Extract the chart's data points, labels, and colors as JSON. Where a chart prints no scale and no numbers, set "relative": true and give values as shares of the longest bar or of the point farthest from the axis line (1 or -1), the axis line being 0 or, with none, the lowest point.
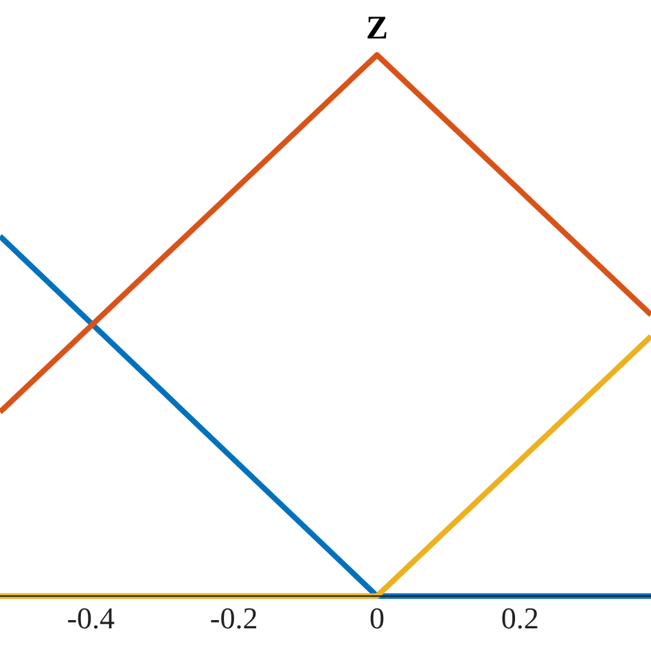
{
  "chart_data": {
    "type": "line",
    "relative": true,
    "xlim": [
      -0.527,
      0.383
    ],
    "xticks": [
      -0.4,
      -0.2,
      0,
      0.2
    ],
    "marker": "none",
    "line_style": "solid",
    "grid": false,
    "legend": false,
    "series": [
      {
        "color": "#0072bd",
        "x": [
          -0.527,
          0,
          0.383
        ],
        "values": [
          0.665,
          0,
          0
        ]
      },
      {
        "name": "Z",
        "color": "#d95319",
        "x": [
          -0.527,
          0,
          0.383
        ],
        "values": [
          0.34,
          1,
          0.52
        ]
      },
      {
        "color": "#edb120",
        "x": [
          -0.527,
          0,
          0.383
        ],
        "values": [
          0,
          0,
          0.48
        ]
      }
    ]
  }
}
